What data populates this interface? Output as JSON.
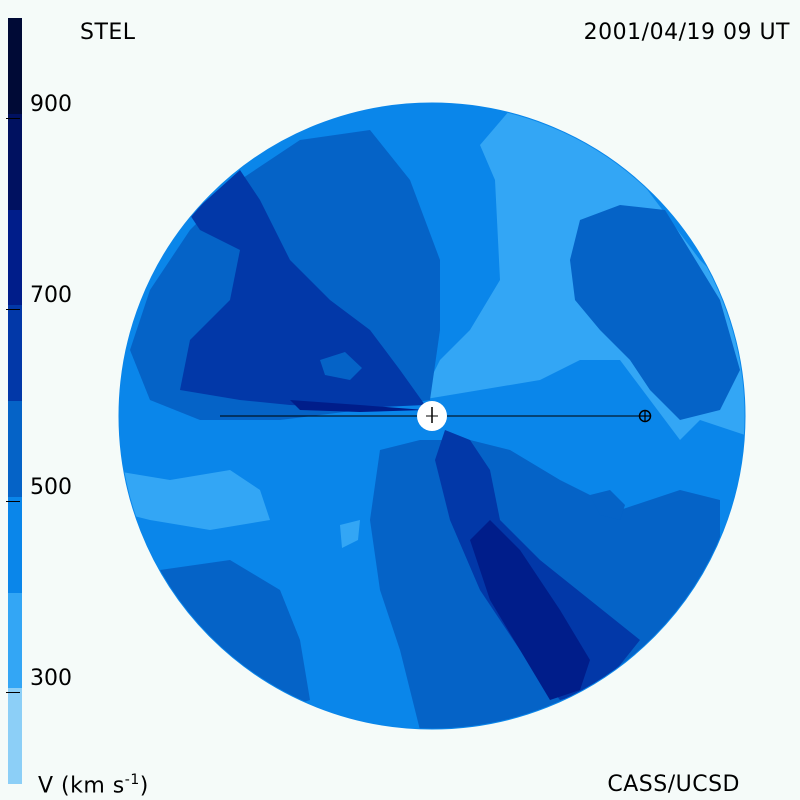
{
  "header": {
    "source": "STEL",
    "timestamp": "2001/04/19 09 UT"
  },
  "footer": {
    "unit_label_main": "V (km s",
    "unit_label_exp": "-1",
    "unit_label_close": ")",
    "credit": "CASS/UCSD"
  },
  "colorbar": {
    "min": 200,
    "max": 1000,
    "ticks": [
      {
        "value": 900,
        "label": "900"
      },
      {
        "value": 700,
        "label": "700"
      },
      {
        "value": 500,
        "label": "500"
      },
      {
        "value": 300,
        "label": "300"
      }
    ],
    "bands": [
      {
        "from": 200,
        "to": 300,
        "color": "#8ccff7"
      },
      {
        "from": 300,
        "to": 400,
        "color": "#33a6f5"
      },
      {
        "from": 400,
        "to": 500,
        "color": "#0a86ea"
      },
      {
        "from": 500,
        "to": 600,
        "color": "#0563c7"
      },
      {
        "from": 600,
        "to": 700,
        "color": "#0238a8"
      },
      {
        "from": 700,
        "to": 800,
        "color": "#001d8a"
      },
      {
        "from": 800,
        "to": 900,
        "color": "#001160"
      },
      {
        "from": 900,
        "to": 1000,
        "color": "#000a36"
      }
    ]
  },
  "map": {
    "symbols": [
      "sun-symbol",
      "earth-symbol"
    ]
  }
}
